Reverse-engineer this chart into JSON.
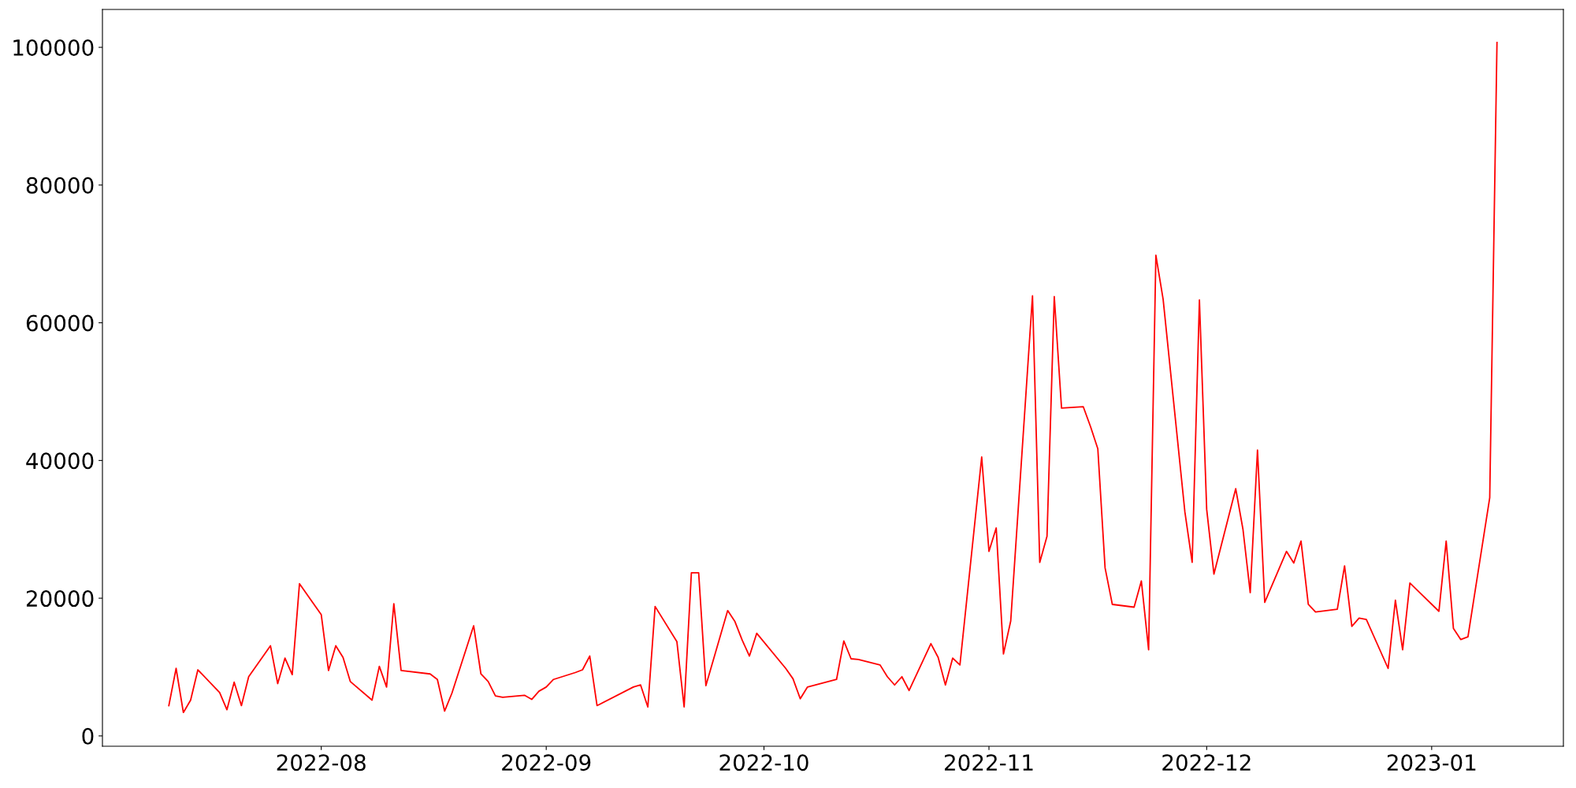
{
  "chart_data": {
    "type": "line",
    "xlim": [
      "2022-07-01T20:24",
      "2023-01-19T03:36"
    ],
    "ylim": [
      -1500,
      105500
    ],
    "xticks": [
      {
        "value": "2022-08-01",
        "label": "2022-08"
      },
      {
        "value": "2022-09-01",
        "label": "2022-09"
      },
      {
        "value": "2022-10-01",
        "label": "2022-10"
      },
      {
        "value": "2022-11-01",
        "label": "2022-11"
      },
      {
        "value": "2022-12-01",
        "label": "2022-12"
      },
      {
        "value": "2023-01-01",
        "label": "2023-01"
      }
    ],
    "yticks": [
      0,
      20000,
      40000,
      60000,
      80000,
      100000
    ],
    "grid": false,
    "marker": "none",
    "line_style": "solid",
    "series": [
      {
        "color": "#ff0000",
        "x": [
          "2022-07-11",
          "2022-07-12",
          "2022-07-13",
          "2022-07-14",
          "2022-07-15",
          "2022-07-18",
          "2022-07-19",
          "2022-07-20",
          "2022-07-21",
          "2022-07-22",
          "2022-07-25",
          "2022-07-26",
          "2022-07-27",
          "2022-07-28",
          "2022-07-29",
          "2022-08-01",
          "2022-08-02",
          "2022-08-03",
          "2022-08-04",
          "2022-08-05",
          "2022-08-08",
          "2022-08-09",
          "2022-08-10",
          "2022-08-11",
          "2022-08-12",
          "2022-08-16",
          "2022-08-17",
          "2022-08-18",
          "2022-08-19",
          "2022-08-22",
          "2022-08-23",
          "2022-08-24",
          "2022-08-25",
          "2022-08-26",
          "2022-08-29",
          "2022-08-30",
          "2022-08-31",
          "2022-09-01",
          "2022-09-02",
          "2022-09-05",
          "2022-09-06",
          "2022-09-07",
          "2022-09-08",
          "2022-09-13",
          "2022-09-14",
          "2022-09-15",
          "2022-09-16",
          "2022-09-19",
          "2022-09-20",
          "2022-09-21",
          "2022-09-22",
          "2022-09-23",
          "2022-09-26",
          "2022-09-27",
          "2022-09-28",
          "2022-09-29",
          "2022-09-30",
          "2022-10-04",
          "2022-10-05",
          "2022-10-06",
          "2022-10-07",
          "2022-10-11",
          "2022-10-12",
          "2022-10-13",
          "2022-10-14",
          "2022-10-17",
          "2022-10-18",
          "2022-10-19",
          "2022-10-20",
          "2022-10-21",
          "2022-10-24",
          "2022-10-25",
          "2022-10-26",
          "2022-10-27",
          "2022-10-28",
          "2022-10-31",
          "2022-11-01",
          "2022-11-02",
          "2022-11-03",
          "2022-11-04",
          "2022-11-07",
          "2022-11-08",
          "2022-11-09",
          "2022-11-10",
          "2022-11-11",
          "2022-11-14",
          "2022-11-15",
          "2022-11-16",
          "2022-11-17",
          "2022-11-18",
          "2022-11-21",
          "2022-11-22",
          "2022-11-23",
          "2022-11-24",
          "2022-11-25",
          "2022-11-28",
          "2022-11-29",
          "2022-11-30",
          "2022-12-01",
          "2022-12-02",
          "2022-12-05",
          "2022-12-06",
          "2022-12-07",
          "2022-12-08",
          "2022-12-09",
          "2022-12-12",
          "2022-12-13",
          "2022-12-14",
          "2022-12-15",
          "2022-12-16",
          "2022-12-19",
          "2022-12-20",
          "2022-12-21",
          "2022-12-22",
          "2022-12-23",
          "2022-12-26",
          "2022-12-27",
          "2022-12-28",
          "2022-12-29",
          "2023-01-02",
          "2023-01-03",
          "2023-01-04",
          "2023-01-05",
          "2023-01-06",
          "2023-01-09",
          "2023-01-10"
        ],
        "values": [
          4400,
          9800,
          3400,
          5200,
          9600,
          6300,
          3800,
          7800,
          4400,
          8600,
          13100,
          7600,
          11300,
          8900,
          22100,
          17600,
          9500,
          13100,
          11400,
          7900,
          5200,
          10100,
          7100,
          19200,
          9500,
          9000,
          8200,
          3600,
          6200,
          16000,
          9000,
          7900,
          5800,
          5600,
          5900,
          5300,
          6500,
          7100,
          8200,
          9200,
          9600,
          11600,
          4400,
          7100,
          7400,
          4200,
          18800,
          13700,
          4200,
          23700,
          23700,
          7300,
          18200,
          16600,
          13900,
          11600,
          14900,
          9800,
          8300,
          5400,
          7100,
          8200,
          13800,
          11200,
          11100,
          10300,
          8600,
          7400,
          8600,
          6600,
          13400,
          11400,
          7400,
          11300,
          10300,
          40500,
          26800,
          30200,
          11900,
          16700,
          63900,
          25200,
          29000,
          63800,
          47600,
          47800,
          44900,
          41700,
          24400,
          19100,
          18700,
          22500,
          12500,
          69800,
          63400,
          32500,
          25200,
          63300,
          32900,
          23500,
          35900,
          30000,
          20800,
          41500,
          19400,
          26800,
          25100,
          28300,
          19100,
          18000,
          18400,
          24700,
          15900,
          17100,
          16900,
          9800,
          19700,
          12500,
          22200,
          18100,
          28300,
          15600,
          14000,
          14400,
          34600,
          100700
        ]
      }
    ]
  }
}
